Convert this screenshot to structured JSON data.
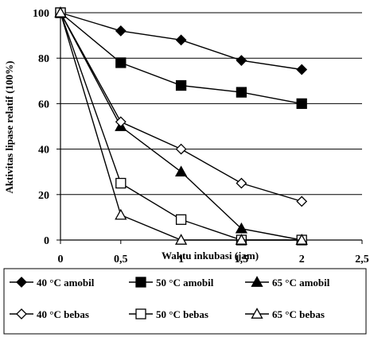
{
  "chart_data": {
    "type": "line",
    "xlabel": "Waktu inkubasi (jam)",
    "ylabel": "Aktivitas lipase relatif (100%)",
    "xlim": [
      0,
      2.5
    ],
    "ylim": [
      0,
      100
    ],
    "x_ticks": [
      0,
      0.5,
      1,
      1.5,
      2,
      2.5
    ],
    "x_tick_labels": [
      "0",
      "0,5",
      "1",
      "1,5",
      "2",
      "2,5"
    ],
    "y_ticks": [
      0,
      20,
      40,
      60,
      80,
      100
    ],
    "y_tick_labels": [
      "0",
      "20",
      "40",
      "60",
      "80",
      "100"
    ],
    "grid": "horizontal",
    "legend_position": "bottom",
    "x": [
      0,
      0.5,
      1,
      1.5,
      2
    ],
    "series": [
      {
        "name": "40 °C amobil",
        "marker": "diamond-filled",
        "values": [
          100,
          92,
          88,
          79,
          75
        ]
      },
      {
        "name": "50 °C amobil",
        "marker": "square-filled",
        "values": [
          100,
          78,
          68,
          65,
          60
        ]
      },
      {
        "name": "65 °C amobil",
        "marker": "triangle-filled",
        "values": [
          100,
          50,
          30,
          5,
          0
        ]
      },
      {
        "name": "40 °C bebas",
        "marker": "diamond-open",
        "values": [
          100,
          52,
          40,
          25,
          17
        ]
      },
      {
        "name": "50 °C bebas",
        "marker": "square-open",
        "values": [
          100,
          25,
          9,
          0,
          0
        ]
      },
      {
        "name": "65 °C bebas",
        "marker": "triangle-open",
        "values": [
          100,
          11,
          0,
          0,
          0
        ]
      }
    ]
  }
}
